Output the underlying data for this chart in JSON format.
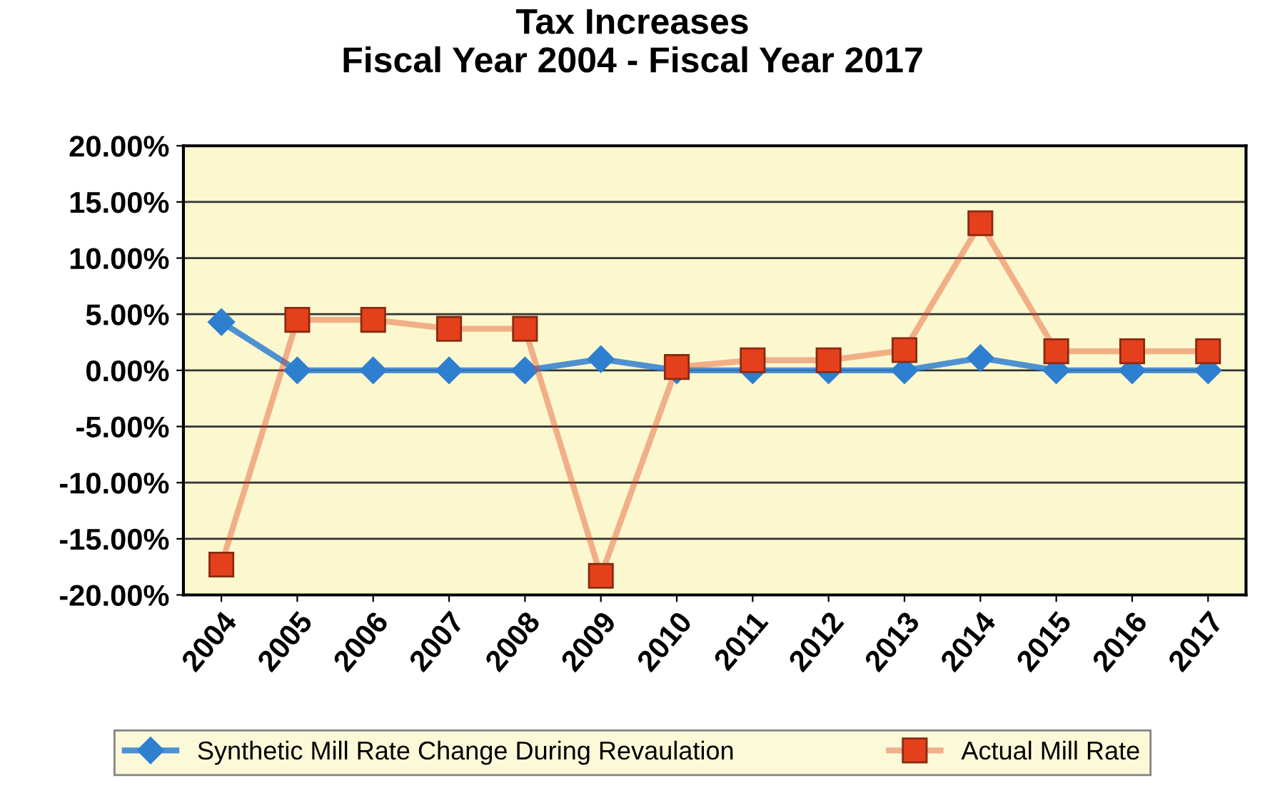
{
  "chart_data": {
    "type": "line",
    "title": "Tax Increases\nFiscal Year 2004 - Fiscal Year 2017",
    "categories": [
      "2004",
      "2005",
      "2006",
      "2007",
      "2008",
      "2009",
      "2010",
      "2011",
      "2012",
      "2013",
      "2014",
      "2015",
      "2016",
      "2017"
    ],
    "series": [
      {
        "name": "Synthetic Mill Rate Change During Revaulation",
        "color": "#2f7fd0",
        "marker": "diamond",
        "values": [
          4.3,
          0,
          0,
          0,
          0,
          1.0,
          0,
          0,
          0,
          0,
          1.1,
          0,
          0,
          0
        ]
      },
      {
        "name": "Actual Mill Rate",
        "color": "#e5401c",
        "marker": "square",
        "values": [
          -17.3,
          4.5,
          4.5,
          3.7,
          3.7,
          -18.3,
          0.3,
          0.9,
          0.9,
          1.8,
          13.1,
          1.7,
          1.7,
          1.7
        ]
      }
    ],
    "ylim": [
      -20,
      20
    ],
    "yticks": [
      {
        "value": -20,
        "label": "-20.00%"
      },
      {
        "value": -15,
        "label": "-15.00%"
      },
      {
        "value": -10,
        "label": "-10.00%"
      },
      {
        "value": -5,
        "label": "-5.00%"
      },
      {
        "value": 0,
        "label": "0.00%"
      },
      {
        "value": 5,
        "label": "5.00%"
      },
      {
        "value": 10,
        "label": "10.00%"
      },
      {
        "value": 15,
        "label": "15.00%"
      },
      {
        "value": 20,
        "label": "20.00%"
      }
    ],
    "grid": "y",
    "legend": "bottom",
    "line_style": "solid"
  }
}
